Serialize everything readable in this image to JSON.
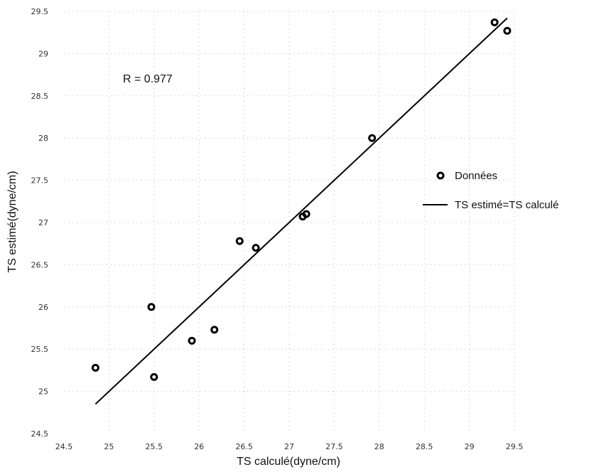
{
  "chart_data": {
    "type": "scatter",
    "title": "",
    "xlabel": "TS calculé(dyne/cm)",
    "ylabel": "TS estimé(dyne/cm)",
    "xlim": [
      24.5,
      29.5
    ],
    "ylim": [
      24.5,
      29.5
    ],
    "xticks": [
      24.5,
      25,
      25.5,
      26,
      26.5,
      27,
      27.5,
      28,
      28.5,
      29,
      29.5
    ],
    "yticks": [
      24.5,
      25,
      25.5,
      26,
      26.5,
      27,
      27.5,
      28,
      28.5,
      29,
      29.5
    ],
    "xtick_labels": [
      "24.5",
      "25",
      "25.5",
      "26",
      "26.5",
      "27",
      "27.5",
      "28",
      "28.5",
      "29",
      "29.5"
    ],
    "ytick_labels": [
      "24.5",
      "25",
      "25.5",
      "26",
      "26.5",
      "27",
      "27.5",
      "28",
      "28.5",
      "29",
      "29.5"
    ],
    "grid": true,
    "legend_position": "right",
    "annotation": "R = 0.977",
    "series": [
      {
        "name": "Données",
        "type": "scatter",
        "marker": "circle-open",
        "color": "#000000",
        "points": [
          {
            "x": 24.85,
            "y": 25.28
          },
          {
            "x": 25.47,
            "y": 26.0
          },
          {
            "x": 25.5,
            "y": 25.17
          },
          {
            "x": 25.92,
            "y": 25.6
          },
          {
            "x": 26.17,
            "y": 25.73
          },
          {
            "x": 26.45,
            "y": 26.78
          },
          {
            "x": 26.63,
            "y": 26.7
          },
          {
            "x": 27.15,
            "y": 27.07
          },
          {
            "x": 27.19,
            "y": 27.1
          },
          {
            "x": 27.92,
            "y": 28.0
          },
          {
            "x": 29.28,
            "y": 29.37
          },
          {
            "x": 29.42,
            "y": 29.27
          }
        ]
      },
      {
        "name": "TS estimé=TS calculé",
        "type": "line",
        "color": "#000000",
        "points": [
          {
            "x": 24.85,
            "y": 24.85
          },
          {
            "x": 29.42,
            "y": 29.42
          }
        ]
      }
    ]
  }
}
